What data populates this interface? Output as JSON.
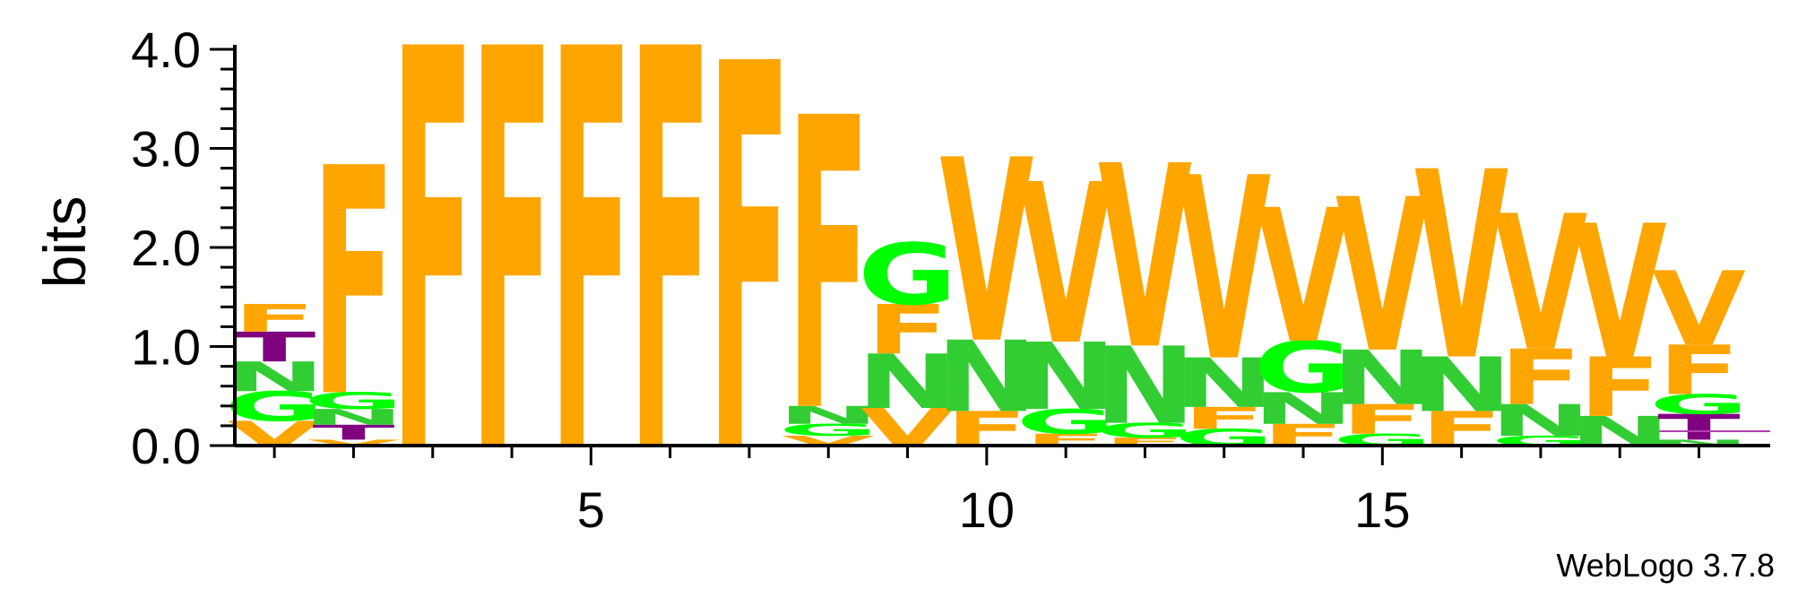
{
  "chart_data": {
    "type": "sequence-logo",
    "ylabel": "bits",
    "ylim": [
      0,
      4.0
    ],
    "yticks": [
      "0.0",
      "1.0",
      "2.0",
      "3.0",
      "4.0"
    ],
    "xticks": [
      "5",
      "10",
      "15"
    ],
    "xtick_positions": [
      5,
      10,
      15
    ],
    "colors": {
      "F": "#ffa500",
      "V": "#ffa500",
      "N": "#32cd32",
      "G": "#00ff00",
      "T": "#800080"
    },
    "positions": [
      {
        "pos": 1,
        "stack": [
          {
            "l": "V",
            "h": 0.25
          },
          {
            "l": "G",
            "h": 0.3
          },
          {
            "l": "N",
            "h": 0.3
          },
          {
            "l": "T",
            "h": 0.3
          },
          {
            "l": "F",
            "h": 0.28
          }
        ]
      },
      {
        "pos": 2,
        "stack": [
          {
            "l": "V",
            "h": 0.06
          },
          {
            "l": "T",
            "h": 0.15
          },
          {
            "l": "N",
            "h": 0.16
          },
          {
            "l": "G",
            "h": 0.17
          },
          {
            "l": "F",
            "h": 2.3
          }
        ]
      },
      {
        "pos": 3,
        "stack": [
          {
            "l": "F",
            "h": 4.05
          }
        ]
      },
      {
        "pos": 4,
        "stack": [
          {
            "l": "F",
            "h": 4.05
          }
        ]
      },
      {
        "pos": 5,
        "stack": [
          {
            "l": "F",
            "h": 4.05
          }
        ]
      },
      {
        "pos": 6,
        "stack": [
          {
            "l": "F",
            "h": 4.05
          }
        ]
      },
      {
        "pos": 7,
        "stack": [
          {
            "l": "F",
            "h": 3.9
          }
        ]
      },
      {
        "pos": 8,
        "stack": [
          {
            "l": "V",
            "h": 0.1
          },
          {
            "l": "G",
            "h": 0.12
          },
          {
            "l": "N",
            "h": 0.18
          },
          {
            "l": "F",
            "h": 2.95
          }
        ]
      },
      {
        "pos": 9,
        "stack": [
          {
            "l": "V",
            "h": 0.38
          },
          {
            "l": "N",
            "h": 0.55
          },
          {
            "l": "F",
            "h": 0.5
          },
          {
            "l": "G",
            "h": 0.62
          }
        ]
      },
      {
        "pos": 10,
        "stack": [
          {
            "l": "F",
            "h": 0.35
          },
          {
            "l": "N",
            "h": 0.72
          },
          {
            "l": "V",
            "h": 1.85
          }
        ]
      },
      {
        "pos": 11,
        "stack": [
          {
            "l": "F",
            "h": 0.12
          },
          {
            "l": "G",
            "h": 0.25
          },
          {
            "l": "N",
            "h": 0.68
          },
          {
            "l": "V",
            "h": 1.62
          }
        ]
      },
      {
        "pos": 12,
        "stack": [
          {
            "l": "F",
            "h": 0.08
          },
          {
            "l": "G",
            "h": 0.15
          },
          {
            "l": "N",
            "h": 0.78
          },
          {
            "l": "V",
            "h": 1.85
          }
        ]
      },
      {
        "pos": 13,
        "stack": [
          {
            "l": "G",
            "h": 0.17
          },
          {
            "l": "F",
            "h": 0.22
          },
          {
            "l": "N",
            "h": 0.5
          },
          {
            "l": "V",
            "h": 1.85
          }
        ]
      },
      {
        "pos": 14,
        "stack": [
          {
            "l": "F",
            "h": 0.22
          },
          {
            "l": "N",
            "h": 0.32
          },
          {
            "l": "G",
            "h": 0.52
          },
          {
            "l": "V",
            "h": 1.35
          }
        ]
      },
      {
        "pos": 15,
        "stack": [
          {
            "l": "G",
            "h": 0.12
          },
          {
            "l": "F",
            "h": 0.3
          },
          {
            "l": "N",
            "h": 0.55
          },
          {
            "l": "V",
            "h": 1.55
          }
        ]
      },
      {
        "pos": 16,
        "stack": [
          {
            "l": "F",
            "h": 0.35
          },
          {
            "l": "N",
            "h": 0.55
          },
          {
            "l": "V",
            "h": 1.9
          }
        ]
      },
      {
        "pos": 17,
        "stack": [
          {
            "l": "G",
            "h": 0.1
          },
          {
            "l": "N",
            "h": 0.32
          },
          {
            "l": "F",
            "h": 0.56
          },
          {
            "l": "V",
            "h": 1.37
          }
        ]
      },
      {
        "pos": 18,
        "stack": [
          {
            "l": "N",
            "h": 0.3
          },
          {
            "l": "F",
            "h": 0.6
          },
          {
            "l": "V",
            "h": 1.35
          }
        ]
      },
      {
        "pos": 19,
        "stack": [
          {
            "l": "N",
            "h": 0.06
          },
          {
            "l": "T",
            "h": 0.26
          },
          {
            "l": "G",
            "h": 0.2
          },
          {
            "l": "F",
            "h": 0.5
          },
          {
            "l": "V",
            "h": 0.75
          }
        ]
      }
    ]
  },
  "footer": {
    "text": "WebLogo 3.7.8"
  }
}
